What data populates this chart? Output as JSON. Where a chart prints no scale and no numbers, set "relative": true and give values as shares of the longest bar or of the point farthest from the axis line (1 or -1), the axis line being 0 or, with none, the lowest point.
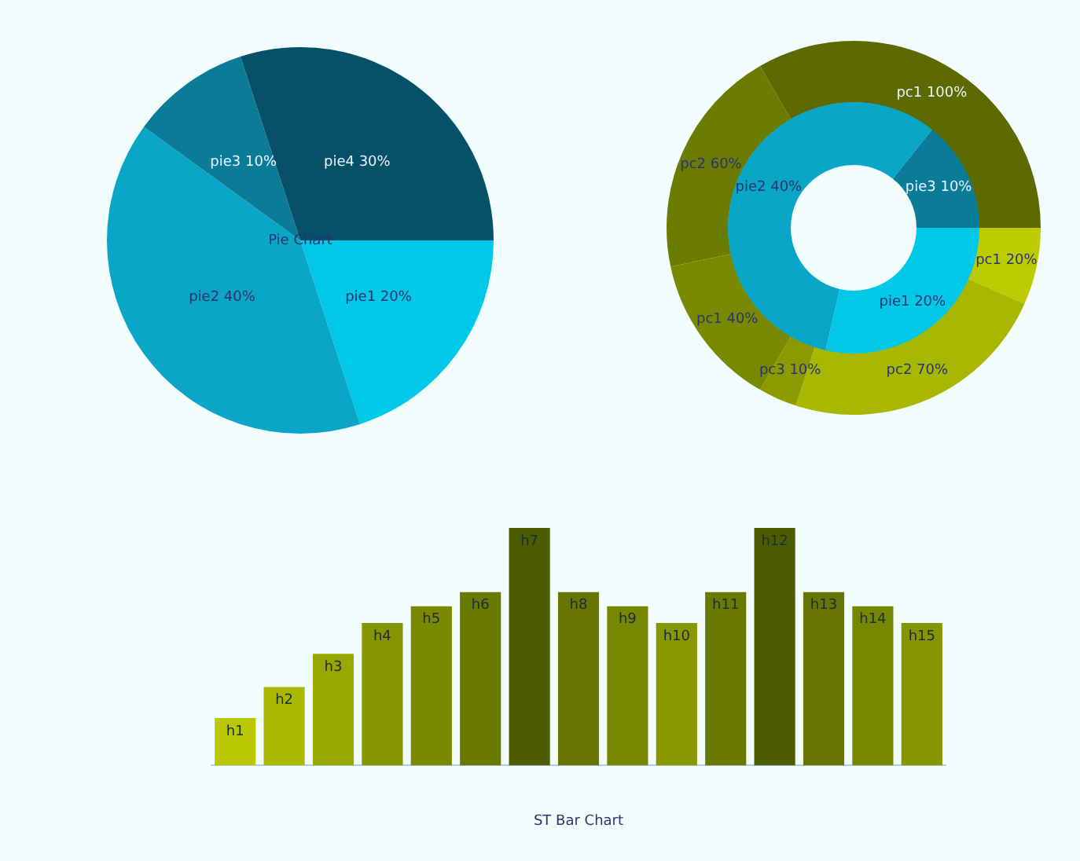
{
  "chart_data": [
    {
      "type": "pie",
      "title": "Pie Chart",
      "categories": [
        "pie1",
        "pie2",
        "pie3",
        "pie4"
      ],
      "values": [
        20,
        40,
        10,
        30
      ],
      "value_labels": [
        "20%",
        "40%",
        "10%",
        "30%"
      ],
      "colors": [
        "#00c8e8",
        "#0aa6c8",
        "#0a7c98",
        "#065068"
      ],
      "legend": false
    },
    {
      "type": "donut",
      "legend": false,
      "categories": [
        "pc1",
        "pc2",
        "pc3",
        "pc1",
        "pc2",
        "pc1"
      ],
      "values": [
        20,
        70,
        10,
        40,
        60,
        100
      ],
      "value_labels": [
        "20%",
        "70%",
        "10%",
        "40%",
        "60%",
        "100%"
      ],
      "colors": [
        "#bccc00",
        "#a8b800",
        "#8c9a00",
        "#7a8a00",
        "#6c7c00",
        "#5c6a00"
      ]
    },
    {
      "type": "donut",
      "legend": false,
      "categories": [
        "pie1",
        "pie2",
        "pie3"
      ],
      "values": [
        20,
        40,
        10
      ],
      "value_labels": [
        "20%",
        "40%",
        "10%"
      ],
      "colors": [
        "#00c8e8",
        "#0aa6c8",
        "#0a7c98"
      ]
    },
    {
      "type": "bar",
      "title": "ST Bar Chart",
      "relative": true,
      "legend": false,
      "categories": [
        "h1",
        "h2",
        "h3",
        "h4",
        "h5",
        "h6",
        "h7",
        "h8",
        "h9",
        "h10",
        "h11",
        "h12",
        "h13",
        "h14",
        "h15"
      ],
      "values": [
        0.2,
        0.33,
        0.47,
        0.6,
        0.67,
        0.73,
        1,
        0.73,
        0.67,
        0.6,
        0.73,
        1,
        0.73,
        0.67,
        0.6
      ],
      "colors": [
        "#b9c800",
        "#a9b800",
        "#98a800",
        "#879600",
        "#7a8a00",
        "#6a7a00",
        "#4e5c00",
        "#667600",
        "#778800",
        "#889800",
        "#6a7a00",
        "#4e5c00",
        "#667600",
        "#778800",
        "#879600"
      ]
    }
  ]
}
